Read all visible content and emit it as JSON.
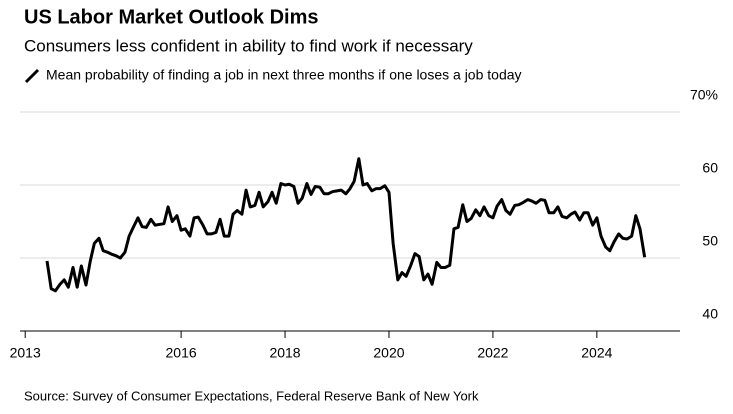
{
  "chart_data": {
    "type": "line",
    "title": "US Labor Market Outlook Dims",
    "subtitle": "Consumers less confident in ability to find work if necessary",
    "source": "Source: Survey of Consumer Expectations, Federal Reserve Bank of New York",
    "x": [
      2013.42,
      2013.5,
      2013.58,
      2013.67,
      2013.75,
      2013.83,
      2013.92,
      2014.0,
      2014.08,
      2014.17,
      2014.25,
      2014.33,
      2014.42,
      2014.5,
      2014.58,
      2014.67,
      2014.75,
      2014.83,
      2014.92,
      2015.0,
      2015.08,
      2015.17,
      2015.25,
      2015.33,
      2015.42,
      2015.5,
      2015.58,
      2015.67,
      2015.75,
      2015.83,
      2015.92,
      2016.0,
      2016.08,
      2016.17,
      2016.25,
      2016.33,
      2016.42,
      2016.5,
      2016.58,
      2016.67,
      2016.75,
      2016.83,
      2016.92,
      2017.0,
      2017.08,
      2017.17,
      2017.25,
      2017.33,
      2017.42,
      2017.5,
      2017.58,
      2017.67,
      2017.75,
      2017.83,
      2017.92,
      2018.0,
      2018.08,
      2018.17,
      2018.25,
      2018.33,
      2018.42,
      2018.5,
      2018.58,
      2018.67,
      2018.75,
      2018.83,
      2018.92,
      2019.0,
      2019.08,
      2019.17,
      2019.25,
      2019.33,
      2019.42,
      2019.5,
      2019.58,
      2019.67,
      2019.75,
      2019.83,
      2019.92,
      2020.0,
      2020.08,
      2020.17,
      2020.25,
      2020.33,
      2020.42,
      2020.5,
      2020.58,
      2020.67,
      2020.75,
      2020.83,
      2020.92,
      2021.0,
      2021.08,
      2021.17,
      2021.25,
      2021.33,
      2021.42,
      2021.5,
      2021.58,
      2021.67,
      2021.75,
      2021.83,
      2021.92,
      2022.0,
      2022.08,
      2022.17,
      2022.25,
      2022.33,
      2022.42,
      2022.5,
      2022.58,
      2022.67,
      2022.75,
      2022.83,
      2022.92,
      2023.0,
      2023.08,
      2023.17,
      2023.25,
      2023.33,
      2023.42,
      2023.5,
      2023.58,
      2023.67,
      2023.75,
      2023.83,
      2023.92,
      2024.0,
      2024.08,
      2024.17,
      2024.25,
      2024.33,
      2024.42,
      2024.5,
      2024.58,
      2024.67,
      2024.75,
      2024.83,
      2024.92
    ],
    "series": [
      {
        "name": "Mean probability of finding a job in next three months if one loses a job today",
        "color": "#000000",
        "values": [
          49.6,
          45.8,
          45.5,
          46.4,
          47,
          46,
          48.7,
          46,
          48.9,
          46.3,
          49.5,
          52,
          52.7,
          51,
          50.8,
          50.5,
          50.3,
          50,
          50.8,
          53,
          54.2,
          55.5,
          54.3,
          54.2,
          55.3,
          54.5,
          54.6,
          54.7,
          57,
          55,
          55.8,
          53.8,
          54,
          53,
          55.5,
          55.6,
          54.5,
          53.3,
          53.3,
          53.5,
          55.3,
          53,
          53,
          56,
          56.5,
          56,
          59.3,
          57,
          57.2,
          59,
          57,
          57.7,
          59,
          57.5,
          60.2,
          60,
          60.1,
          59.8,
          57.5,
          58.2,
          60.2,
          58.7,
          59.8,
          59.7,
          58.8,
          58.8,
          59.1,
          59.2,
          59.3,
          58.8,
          59.5,
          60.5,
          63.6,
          60,
          60.2,
          59.2,
          59.5,
          59.5,
          59.9,
          59,
          52,
          47,
          48,
          47.5,
          49,
          50.6,
          50.2,
          47,
          47.8,
          46.4,
          49.4,
          48.7,
          48.7,
          49,
          54,
          54.2,
          57.3,
          55,
          55.4,
          56.6,
          55.8,
          57,
          55.8,
          55.5,
          57.1,
          58,
          56.5,
          56,
          57.2,
          57.3,
          57.6,
          58,
          57.8,
          57.5,
          58,
          57.9,
          56.2,
          56.2,
          57,
          55.7,
          55.5,
          56,
          56.3,
          55.2,
          56.2,
          56.2,
          54.5,
          55.5,
          53,
          51.5,
          51,
          52.2,
          53.3,
          52.7,
          52.6,
          53,
          55.8,
          54,
          50.1
        ]
      }
    ],
    "xlim": [
      2012.9,
      2025.6
    ],
    "xticks": [
      2013,
      2016,
      2018,
      2020,
      2022,
      2024
    ],
    "ylim": [
      40,
      70
    ],
    "yticks": [
      40,
      50,
      60,
      {
        "value": 70,
        "label": "70%"
      }
    ],
    "grid": true
  }
}
